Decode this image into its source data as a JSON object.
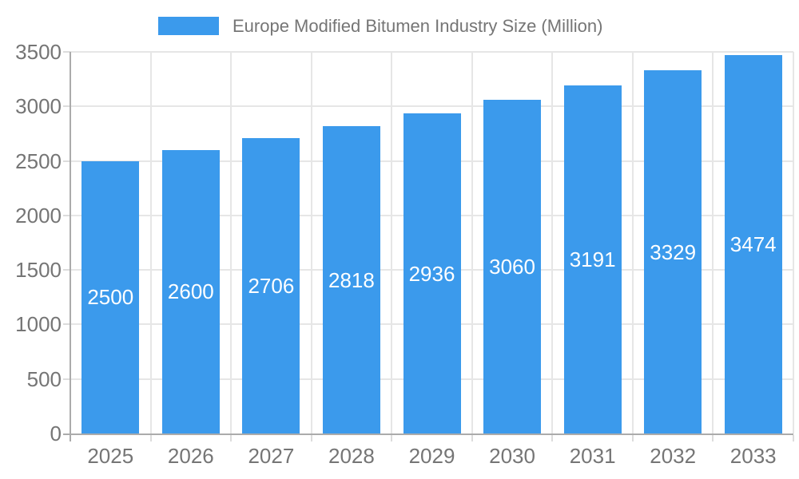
{
  "legend": {
    "series_label": "Europe Modified Bitumen Industry Size (Million)"
  },
  "chart_data": {
    "type": "bar",
    "title": "Europe Modified Bitumen Industry Size (Million)",
    "categories": [
      "2025",
      "2026",
      "2027",
      "2028",
      "2029",
      "2030",
      "2031",
      "2032",
      "2033"
    ],
    "values": [
      2500,
      2600,
      2706,
      2818,
      2936,
      3060,
      3191,
      3329,
      3474
    ],
    "series": [
      {
        "name": "Europe Modified Bitumen Industry Size (Million)",
        "values": [
          2500,
          2600,
          2706,
          2818,
          2936,
          3060,
          3191,
          3329,
          3474
        ]
      }
    ],
    "xlabel": "",
    "ylabel": "",
    "ylim": [
      0,
      3500
    ],
    "y_ticks": [
      0,
      500,
      1000,
      1500,
      2000,
      2500,
      3000,
      3500
    ],
    "grid": true,
    "legend_position": "top",
    "value_label_position": "inside-center",
    "colors": {
      "bar": "#3B9AEC",
      "axis_text": "#757575",
      "value_text": "#FFFFFF",
      "gridline": "#E6E6E6",
      "tick": "#DCDCDC",
      "axis_line": "#ABABAB",
      "background": "#FFFFFF"
    }
  }
}
